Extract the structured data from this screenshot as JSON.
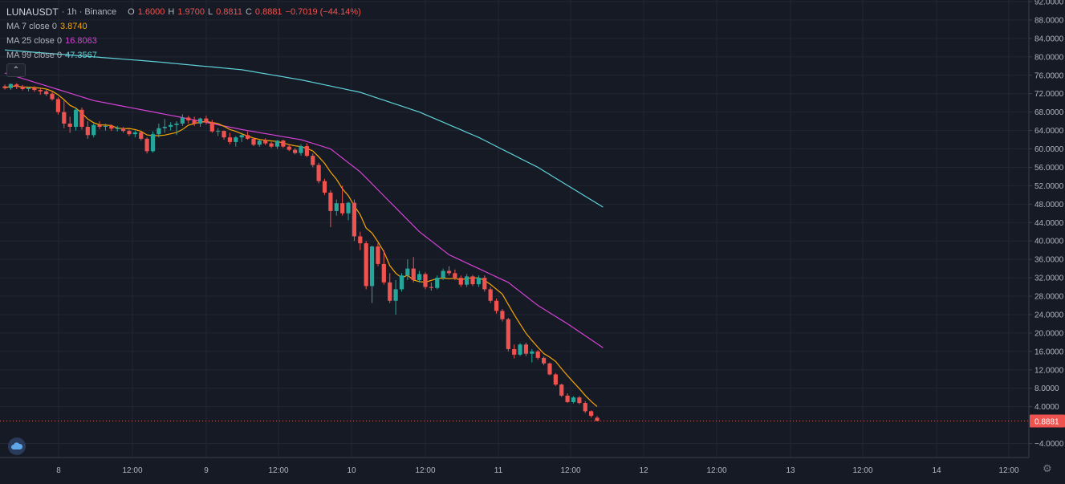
{
  "header": {
    "symbol": "LUNAUSDT",
    "interval": "· 1h · Binance",
    "open_label": "O",
    "open": "1.6000",
    "high_label": "H",
    "high": "1.9700",
    "low_label": "L",
    "low": "0.8811",
    "close_label": "C",
    "close": "0.8881",
    "change": "−0.7019 (−44.14%)"
  },
  "indicators": [
    {
      "label": "MA 7 close 0",
      "value": "3.8740",
      "color": "#f7a600"
    },
    {
      "label": "MA 25 close 0",
      "value": "16.8063",
      "color": "#d442d4"
    },
    {
      "label": "MA 99 close 0",
      "value": "47.3567",
      "color": "#5fd3d9"
    }
  ],
  "colors": {
    "up": "#26a69a",
    "down": "#ef5350",
    "background": "#161a25",
    "grid": "#222633",
    "price_tag": "#ef5350"
  },
  "price_tag": "0.8881",
  "icons": {
    "collapse": "chevron-up-icon",
    "logo": "tradingview-logo-icon",
    "settings": "gear-icon"
  },
  "chart_data": {
    "type": "candlestick",
    "y_ticks": [
      "92.0000",
      "88.0000",
      "84.0000",
      "80.0000",
      "76.0000",
      "72.0000",
      "68.0000",
      "64.0000",
      "60.0000",
      "56.0000",
      "52.0000",
      "48.0000",
      "44.0000",
      "40.0000",
      "36.0000",
      "32.0000",
      "28.0000",
      "24.0000",
      "20.0000",
      "16.0000",
      "12.0000",
      "8.0000",
      "4.0000",
      "−4.0000"
    ],
    "ylim": [
      -6,
      92
    ],
    "x_ticks": [
      "8",
      "12:00",
      "9",
      "12:00",
      "10",
      "12:00",
      "11",
      "12:00",
      "12",
      "12:00",
      "13",
      "12:00",
      "14",
      "12:00"
    ],
    "ohlc": [
      [
        73.6,
        74.0,
        72.9,
        73.2
      ],
      [
        73.2,
        74.2,
        72.8,
        74.1
      ],
      [
        74.0,
        74.3,
        73.0,
        73.5
      ],
      [
        73.5,
        73.9,
        72.7,
        73.0
      ],
      [
        73.0,
        73.5,
        72.5,
        73.3
      ],
      [
        73.3,
        73.6,
        72.4,
        72.8
      ],
      [
        72.8,
        73.2,
        71.8,
        72.5
      ],
      [
        72.5,
        73.0,
        71.5,
        71.9
      ],
      [
        72.0,
        72.6,
        70.5,
        70.8
      ],
      [
        70.8,
        71.2,
        67.5,
        68.0
      ],
      [
        68.0,
        70.5,
        64.5,
        65.5
      ],
      [
        65.5,
        67.0,
        63.5,
        64.8
      ],
      [
        64.8,
        68.8,
        64.0,
        68.5
      ],
      [
        68.5,
        69.0,
        64.2,
        64.8
      ],
      [
        64.8,
        66.0,
        62.2,
        63.0
      ],
      [
        63.0,
        65.5,
        62.5,
        65.2
      ],
      [
        65.2,
        66.0,
        64.3,
        64.8
      ],
      [
        64.8,
        65.5,
        64.0,
        65.0
      ],
      [
        65.0,
        65.3,
        63.9,
        64.4
      ],
      [
        64.4,
        65.0,
        63.8,
        64.5
      ],
      [
        64.5,
        64.8,
        63.5,
        63.9
      ],
      [
        63.9,
        64.2,
        62.8,
        63.2
      ],
      [
        63.2,
        64.0,
        62.5,
        63.6
      ],
      [
        63.6,
        63.8,
        61.8,
        62.2
      ],
      [
        62.2,
        62.5,
        59.0,
        59.5
      ],
      [
        59.5,
        63.8,
        59.2,
        63.2
      ],
      [
        63.2,
        65.5,
        62.5,
        64.5
      ],
      [
        64.5,
        66.5,
        63.5,
        64.8
      ],
      [
        64.8,
        65.8,
        64.0,
        65.2
      ],
      [
        65.2,
        66.0,
        63.0,
        65.5
      ],
      [
        65.5,
        67.5,
        65.0,
        66.8
      ],
      [
        66.8,
        67.2,
        65.5,
        66.2
      ],
      [
        66.2,
        67.0,
        65.0,
        65.5
      ],
      [
        65.5,
        66.8,
        64.8,
        66.6
      ],
      [
        66.6,
        67.2,
        65.3,
        65.8
      ],
      [
        65.8,
        66.3,
        63.5,
        63.8
      ],
      [
        63.8,
        64.5,
        62.8,
        63.9
      ],
      [
        63.9,
        64.0,
        62.0,
        62.5
      ],
      [
        62.5,
        63.5,
        61.0,
        61.5
      ],
      [
        61.5,
        62.8,
        60.5,
        62.5
      ],
      [
        62.5,
        63.5,
        61.5,
        63.0
      ],
      [
        63.0,
        63.8,
        62.0,
        62.2
      ],
      [
        62.2,
        62.4,
        60.6,
        60.9
      ],
      [
        60.9,
        62.0,
        60.5,
        61.8
      ],
      [
        61.8,
        62.3,
        60.8,
        61.2
      ],
      [
        61.2,
        61.5,
        60.2,
        60.5
      ],
      [
        60.5,
        61.9,
        60.0,
        61.8
      ],
      [
        61.8,
        62.0,
        60.2,
        60.5
      ],
      [
        60.5,
        61.0,
        59.5,
        59.8
      ],
      [
        59.8,
        60.2,
        58.8,
        59.1
      ],
      [
        59.1,
        61.0,
        58.5,
        60.6
      ],
      [
        60.6,
        61.2,
        58.2,
        58.5
      ],
      [
        58.5,
        59.0,
        56.0,
        56.5
      ],
      [
        56.5,
        57.0,
        52.5,
        53.0
      ],
      [
        53.0,
        53.5,
        50.0,
        50.5
      ],
      [
        50.5,
        51.0,
        43.0,
        46.5
      ],
      [
        46.5,
        49.0,
        45.5,
        48.2
      ],
      [
        48.2,
        52.0,
        45.5,
        46.0
      ],
      [
        46.0,
        48.5,
        44.5,
        48.3
      ],
      [
        48.3,
        49.0,
        40.0,
        41.0
      ],
      [
        41.0,
        42.0,
        38.0,
        39.5
      ],
      [
        39.5,
        40.0,
        29.5,
        30.2
      ],
      [
        30.2,
        39.0,
        26.5,
        38.8
      ],
      [
        38.8,
        39.5,
        34.5,
        35.0
      ],
      [
        35.0,
        38.0,
        30.5,
        31.0
      ],
      [
        31.0,
        33.0,
        26.5,
        27.0
      ],
      [
        27.0,
        31.5,
        24.0,
        29.5
      ],
      [
        29.5,
        33.0,
        29.0,
        32.5
      ],
      [
        32.5,
        36.0,
        31.5,
        34.0
      ],
      [
        34.0,
        36.5,
        31.0,
        31.5
      ],
      [
        31.5,
        33.5,
        31.0,
        32.8
      ],
      [
        32.8,
        33.2,
        29.5,
        30.0
      ],
      [
        30.0,
        31.0,
        29.2,
        29.8
      ],
      [
        29.8,
        32.5,
        29.5,
        32.0
      ],
      [
        32.0,
        34.0,
        31.5,
        33.5
      ],
      [
        33.5,
        34.5,
        32.5,
        33.0
      ],
      [
        33.0,
        33.8,
        31.5,
        32.0
      ],
      [
        32.0,
        32.5,
        30.0,
        30.5
      ],
      [
        30.5,
        32.8,
        30.0,
        32.3
      ],
      [
        32.3,
        32.6,
        30.2,
        30.6
      ],
      [
        30.6,
        32.5,
        30.0,
        32.0
      ],
      [
        32.0,
        32.5,
        29.0,
        29.5
      ],
      [
        29.5,
        30.0,
        26.5,
        27.0
      ],
      [
        27.0,
        27.5,
        24.2,
        24.8
      ],
      [
        24.8,
        25.2,
        22.5,
        23.0
      ],
      [
        23.0,
        23.3,
        16.0,
        16.5
      ],
      [
        16.5,
        17.5,
        14.5,
        15.3
      ],
      [
        15.3,
        17.8,
        15.0,
        17.5
      ],
      [
        17.5,
        17.9,
        15.0,
        15.5
      ],
      [
        15.5,
        16.5,
        13.6,
        16.0
      ],
      [
        16.0,
        16.3,
        14.2,
        14.6
      ],
      [
        14.6,
        14.9,
        13.0,
        13.4
      ],
      [
        13.4,
        13.6,
        10.8,
        11.0
      ],
      [
        11.0,
        11.3,
        8.5,
        8.8
      ],
      [
        8.8,
        9.0,
        6.1,
        6.4
      ],
      [
        6.4,
        6.9,
        4.8,
        5.0
      ],
      [
        5.0,
        6.3,
        4.7,
        6.0
      ],
      [
        6.0,
        6.3,
        4.5,
        4.8
      ],
      [
        4.8,
        5.2,
        2.6,
        3.0
      ],
      [
        3.0,
        3.2,
        1.6,
        2.0
      ],
      [
        1.6,
        1.97,
        0.8811,
        0.8881
      ]
    ],
    "ma7_last": 3.874,
    "ma25_last": 16.8063,
    "ma99_last": 47.3567,
    "ma99_anchor": [
      [
        0,
        81.5
      ],
      [
        25,
        79.0
      ],
      [
        40,
        77.2
      ],
      [
        50,
        75.0
      ],
      [
        60,
        72.3
      ],
      [
        70,
        68.0
      ],
      [
        80,
        62.5
      ],
      [
        90,
        56.0
      ],
      [
        101,
        47.3567
      ]
    ],
    "ma25_anchor": [
      [
        0,
        76.5
      ],
      [
        15,
        70.5
      ],
      [
        30,
        66.8
      ],
      [
        40,
        64.2
      ],
      [
        50,
        62.0
      ],
      [
        55,
        60.0
      ],
      [
        60,
        55.0
      ],
      [
        65,
        48.5
      ],
      [
        70,
        42.0
      ],
      [
        75,
        37.0
      ],
      [
        80,
        34.0
      ],
      [
        85,
        31.0
      ],
      [
        90,
        26.0
      ],
      [
        95,
        22.0
      ],
      [
        101,
        16.8063
      ]
    ]
  }
}
